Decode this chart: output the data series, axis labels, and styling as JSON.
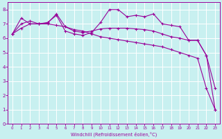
{
  "xlabel": "Windchill (Refroidissement éolien,°C)",
  "bg_color": "#c8f0f0",
  "line_color": "#990099",
  "grid_color": "#ffffff",
  "ylim": [
    0,
    8.5
  ],
  "xlim": [
    -0.5,
    23.5
  ],
  "yticks": [
    0,
    1,
    2,
    3,
    4,
    5,
    6,
    7,
    8
  ],
  "xticks": [
    0,
    1,
    2,
    3,
    4,
    5,
    6,
    7,
    8,
    9,
    10,
    11,
    12,
    13,
    14,
    15,
    16,
    17,
    18,
    19,
    20,
    21,
    22,
    23
  ],
  "series1_x": [
    0,
    1,
    2,
    3,
    4,
    5,
    6,
    7,
    8,
    9,
    10,
    11,
    12,
    13,
    14,
    15,
    16,
    17,
    18,
    19,
    20,
    21,
    22,
    23
  ],
  "series1_y": [
    6.3,
    6.7,
    7.0,
    7.0,
    7.05,
    7.7,
    6.8,
    6.5,
    6.4,
    6.5,
    6.65,
    6.7,
    6.7,
    6.7,
    6.65,
    6.6,
    6.5,
    6.3,
    6.1,
    6.0,
    5.85,
    5.85,
    4.8,
    2.5
  ],
  "series2_x": [
    0,
    1,
    2,
    3,
    4,
    5,
    6,
    7,
    8,
    9,
    10,
    11,
    12,
    13,
    14,
    15,
    16,
    17,
    18,
    19,
    20,
    21,
    22,
    23
  ],
  "series2_y": [
    6.3,
    7.4,
    7.0,
    7.0,
    7.1,
    7.6,
    6.5,
    6.3,
    6.2,
    6.4,
    7.1,
    8.0,
    8.0,
    7.5,
    7.6,
    7.5,
    7.7,
    7.0,
    6.9,
    6.8,
    5.85,
    5.85,
    4.8,
    1.0
  ],
  "series3_x": [
    0,
    1,
    2,
    3,
    4,
    5,
    6,
    7,
    8,
    9,
    10,
    11,
    12,
    13,
    14,
    15,
    16,
    17,
    18,
    19,
    20,
    21,
    22,
    23
  ],
  "series3_y": [
    6.3,
    7.0,
    7.2,
    7.0,
    7.0,
    6.9,
    6.8,
    6.6,
    6.5,
    6.3,
    6.1,
    6.0,
    5.9,
    5.8,
    5.7,
    5.6,
    5.5,
    5.4,
    5.2,
    5.0,
    4.8,
    4.6,
    2.5,
    1.0
  ],
  "fig_width": 3.2,
  "fig_height": 2.0,
  "dpi": 100
}
